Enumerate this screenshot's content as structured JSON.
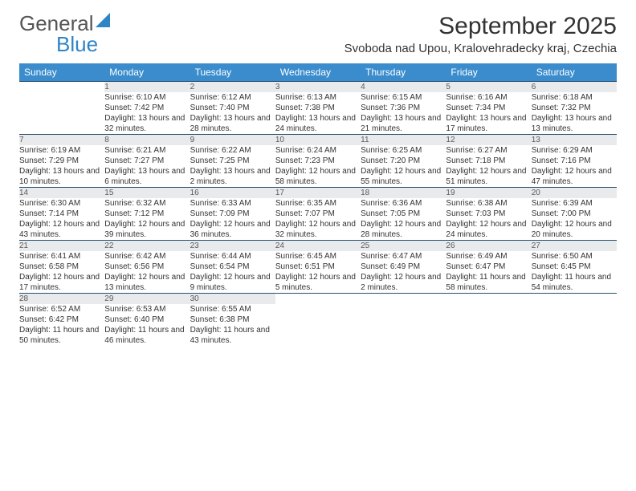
{
  "brand": {
    "name1": "General",
    "name2": "Blue"
  },
  "colors": {
    "header_bg": "#3a8ccc",
    "header_text": "#ffffff",
    "daynum_bg": "#e9eaec",
    "daynum_text": "#5a5a5a",
    "rule": "#28506e",
    "body_text": "#333333",
    "brand_gray": "#555555",
    "brand_blue": "#2f84c6",
    "page_bg": "#ffffff"
  },
  "typography": {
    "title_fontsize": 30,
    "subtitle_fontsize": 15,
    "weekday_fontsize": 12,
    "daynum_fontsize": 12,
    "cell_fontsize": 10
  },
  "title": "September 2025",
  "location": "Svoboda nad Upou, Kralovehradecky kraj, Czechia",
  "weekdays": [
    "Sunday",
    "Monday",
    "Tuesday",
    "Wednesday",
    "Thursday",
    "Friday",
    "Saturday"
  ],
  "weeks": [
    [
      null,
      {
        "n": "1",
        "sr": "Sunrise: 6:10 AM",
        "ss": "Sunset: 7:42 PM",
        "dl": "Daylight: 13 hours and 32 minutes."
      },
      {
        "n": "2",
        "sr": "Sunrise: 6:12 AM",
        "ss": "Sunset: 7:40 PM",
        "dl": "Daylight: 13 hours and 28 minutes."
      },
      {
        "n": "3",
        "sr": "Sunrise: 6:13 AM",
        "ss": "Sunset: 7:38 PM",
        "dl": "Daylight: 13 hours and 24 minutes."
      },
      {
        "n": "4",
        "sr": "Sunrise: 6:15 AM",
        "ss": "Sunset: 7:36 PM",
        "dl": "Daylight: 13 hours and 21 minutes."
      },
      {
        "n": "5",
        "sr": "Sunrise: 6:16 AM",
        "ss": "Sunset: 7:34 PM",
        "dl": "Daylight: 13 hours and 17 minutes."
      },
      {
        "n": "6",
        "sr": "Sunrise: 6:18 AM",
        "ss": "Sunset: 7:32 PM",
        "dl": "Daylight: 13 hours and 13 minutes."
      }
    ],
    [
      {
        "n": "7",
        "sr": "Sunrise: 6:19 AM",
        "ss": "Sunset: 7:29 PM",
        "dl": "Daylight: 13 hours and 10 minutes."
      },
      {
        "n": "8",
        "sr": "Sunrise: 6:21 AM",
        "ss": "Sunset: 7:27 PM",
        "dl": "Daylight: 13 hours and 6 minutes."
      },
      {
        "n": "9",
        "sr": "Sunrise: 6:22 AM",
        "ss": "Sunset: 7:25 PM",
        "dl": "Daylight: 13 hours and 2 minutes."
      },
      {
        "n": "10",
        "sr": "Sunrise: 6:24 AM",
        "ss": "Sunset: 7:23 PM",
        "dl": "Daylight: 12 hours and 58 minutes."
      },
      {
        "n": "11",
        "sr": "Sunrise: 6:25 AM",
        "ss": "Sunset: 7:20 PM",
        "dl": "Daylight: 12 hours and 55 minutes."
      },
      {
        "n": "12",
        "sr": "Sunrise: 6:27 AM",
        "ss": "Sunset: 7:18 PM",
        "dl": "Daylight: 12 hours and 51 minutes."
      },
      {
        "n": "13",
        "sr": "Sunrise: 6:29 AM",
        "ss": "Sunset: 7:16 PM",
        "dl": "Daylight: 12 hours and 47 minutes."
      }
    ],
    [
      {
        "n": "14",
        "sr": "Sunrise: 6:30 AM",
        "ss": "Sunset: 7:14 PM",
        "dl": "Daylight: 12 hours and 43 minutes."
      },
      {
        "n": "15",
        "sr": "Sunrise: 6:32 AM",
        "ss": "Sunset: 7:12 PM",
        "dl": "Daylight: 12 hours and 39 minutes."
      },
      {
        "n": "16",
        "sr": "Sunrise: 6:33 AM",
        "ss": "Sunset: 7:09 PM",
        "dl": "Daylight: 12 hours and 36 minutes."
      },
      {
        "n": "17",
        "sr": "Sunrise: 6:35 AM",
        "ss": "Sunset: 7:07 PM",
        "dl": "Daylight: 12 hours and 32 minutes."
      },
      {
        "n": "18",
        "sr": "Sunrise: 6:36 AM",
        "ss": "Sunset: 7:05 PM",
        "dl": "Daylight: 12 hours and 28 minutes."
      },
      {
        "n": "19",
        "sr": "Sunrise: 6:38 AM",
        "ss": "Sunset: 7:03 PM",
        "dl": "Daylight: 12 hours and 24 minutes."
      },
      {
        "n": "20",
        "sr": "Sunrise: 6:39 AM",
        "ss": "Sunset: 7:00 PM",
        "dl": "Daylight: 12 hours and 20 minutes."
      }
    ],
    [
      {
        "n": "21",
        "sr": "Sunrise: 6:41 AM",
        "ss": "Sunset: 6:58 PM",
        "dl": "Daylight: 12 hours and 17 minutes."
      },
      {
        "n": "22",
        "sr": "Sunrise: 6:42 AM",
        "ss": "Sunset: 6:56 PM",
        "dl": "Daylight: 12 hours and 13 minutes."
      },
      {
        "n": "23",
        "sr": "Sunrise: 6:44 AM",
        "ss": "Sunset: 6:54 PM",
        "dl": "Daylight: 12 hours and 9 minutes."
      },
      {
        "n": "24",
        "sr": "Sunrise: 6:45 AM",
        "ss": "Sunset: 6:51 PM",
        "dl": "Daylight: 12 hours and 5 minutes."
      },
      {
        "n": "25",
        "sr": "Sunrise: 6:47 AM",
        "ss": "Sunset: 6:49 PM",
        "dl": "Daylight: 12 hours and 2 minutes."
      },
      {
        "n": "26",
        "sr": "Sunrise: 6:49 AM",
        "ss": "Sunset: 6:47 PM",
        "dl": "Daylight: 11 hours and 58 minutes."
      },
      {
        "n": "27",
        "sr": "Sunrise: 6:50 AM",
        "ss": "Sunset: 6:45 PM",
        "dl": "Daylight: 11 hours and 54 minutes."
      }
    ],
    [
      {
        "n": "28",
        "sr": "Sunrise: 6:52 AM",
        "ss": "Sunset: 6:42 PM",
        "dl": "Daylight: 11 hours and 50 minutes."
      },
      {
        "n": "29",
        "sr": "Sunrise: 6:53 AM",
        "ss": "Sunset: 6:40 PM",
        "dl": "Daylight: 11 hours and 46 minutes."
      },
      {
        "n": "30",
        "sr": "Sunrise: 6:55 AM",
        "ss": "Sunset: 6:38 PM",
        "dl": "Daylight: 11 hours and 43 minutes."
      },
      null,
      null,
      null,
      null
    ]
  ]
}
